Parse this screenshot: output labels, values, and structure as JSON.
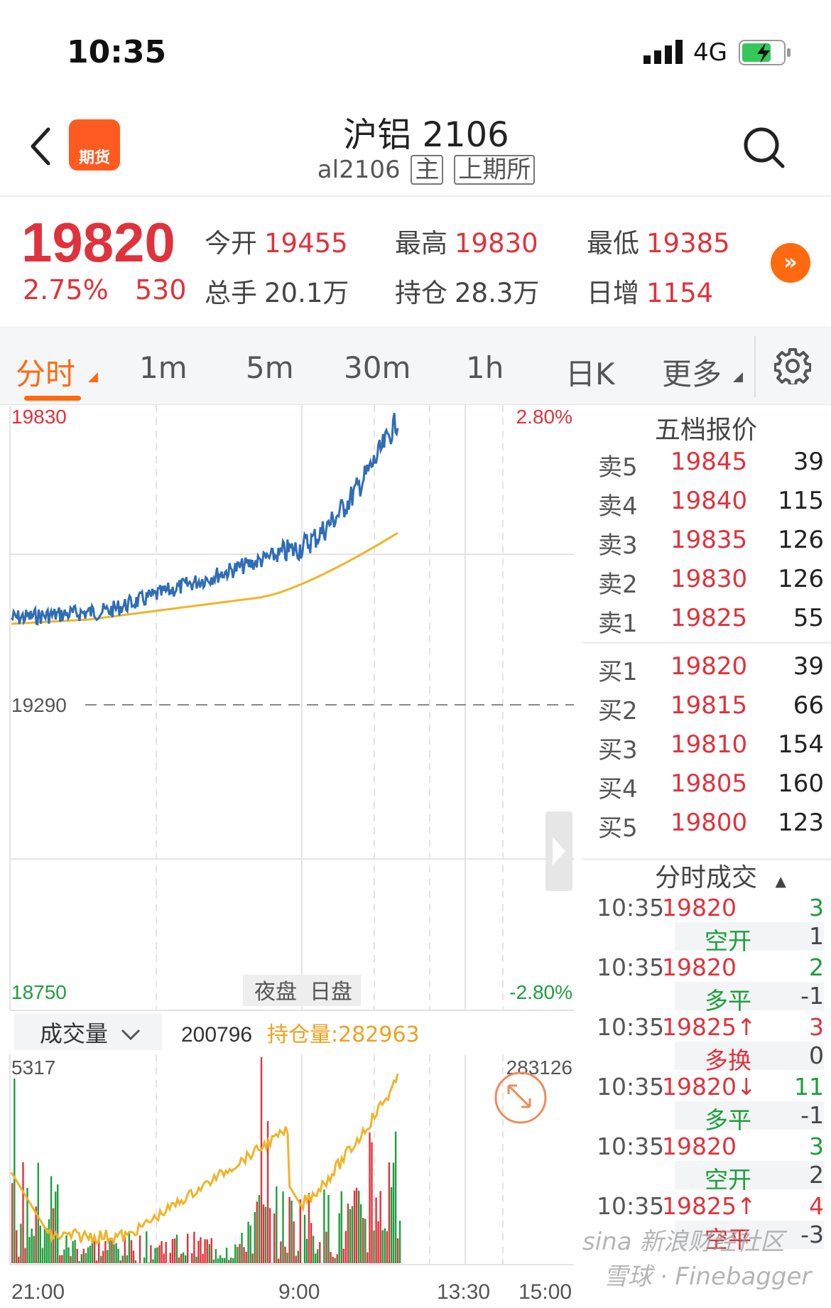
{
  "status_bar": {
    "time": "10:35",
    "network": "4G"
  },
  "header": {
    "title": "沪铝 2106",
    "code": "al2106",
    "tag_main": "主",
    "tag_exchange": "上期所",
    "logo_text": "期货"
  },
  "quote": {
    "last_price": "19820",
    "change_pct": "2.75%",
    "change_abs": "530",
    "open_label": "今开",
    "open": "19455",
    "high_label": "最高",
    "high": "19830",
    "low_label": "最低",
    "low": "19385",
    "volume_label": "总手",
    "volume": "20.1万",
    "oi_label": "持仓",
    "oi": "28.3万",
    "daily_inc_label": "日增",
    "daily_inc": "1154"
  },
  "tabs": [
    "分时",
    "1m",
    "5m",
    "30m",
    "1h",
    "日K",
    "更多"
  ],
  "price_chart": {
    "y_top": "19830",
    "y_mid": "19290",
    "y_bottom": "18750",
    "pct_top": "2.80%",
    "pct_bottom": "-2.80%",
    "session_night": "夜盘",
    "session_day": "日盘",
    "colors": {
      "price": "#2f6db5",
      "average": "#f0b429",
      "up": "#e0323c",
      "down": "#1e9e3c"
    }
  },
  "volume_panel": {
    "selector_label": "成交量",
    "volume_value": "200796",
    "oi_text": "持仓量:282963",
    "y_left_max": "5317",
    "y_right_max": "283126",
    "x_labels": [
      "21:00",
      "9:00",
      "13:30",
      "15:00"
    ]
  },
  "order_book": {
    "title": "五档报价",
    "asks": [
      {
        "label": "卖5",
        "price": "19845",
        "vol": "39"
      },
      {
        "label": "卖4",
        "price": "19840",
        "vol": "115"
      },
      {
        "label": "卖3",
        "price": "19835",
        "vol": "126"
      },
      {
        "label": "卖2",
        "price": "19830",
        "vol": "126"
      },
      {
        "label": "卖1",
        "price": "19825",
        "vol": "55"
      }
    ],
    "bids": [
      {
        "label": "买1",
        "price": "19820",
        "vol": "39"
      },
      {
        "label": "买2",
        "price": "19815",
        "vol": "66"
      },
      {
        "label": "买3",
        "price": "19810",
        "vol": "154"
      },
      {
        "label": "买4",
        "price": "19805",
        "vol": "160"
      },
      {
        "label": "买5",
        "price": "19800",
        "vol": "123"
      }
    ]
  },
  "ticks": {
    "title": "分时成交",
    "rows": [
      {
        "time": "10:35",
        "price": "19820",
        "qty": "3",
        "qty_color": "green",
        "kind": "空开",
        "kind_color": "green",
        "delta": "1"
      },
      {
        "time": "10:35",
        "price": "19820",
        "qty": "2",
        "qty_color": "green",
        "kind": "多平",
        "kind_color": "green",
        "delta": "-1"
      },
      {
        "time": "10:35",
        "price": "19825↑",
        "qty": "3",
        "qty_color": "red",
        "kind": "多换",
        "kind_color": "red",
        "delta": "0"
      },
      {
        "time": "10:35",
        "price": "19820↓",
        "qty": "11",
        "qty_color": "green",
        "kind": "多平",
        "kind_color": "green",
        "delta": "-1"
      },
      {
        "time": "10:35",
        "price": "19820",
        "qty": "3",
        "qty_color": "green",
        "kind": "空开",
        "kind_color": "green",
        "delta": "2"
      },
      {
        "time": "10:35",
        "price": "19825↑",
        "qty": "4",
        "qty_color": "red",
        "kind": "空平",
        "kind_color": "red",
        "delta": "-3"
      }
    ]
  },
  "watermark": {
    "brand": "sina 新浪财经社区",
    "handle": "雪球 · Finebagger"
  }
}
